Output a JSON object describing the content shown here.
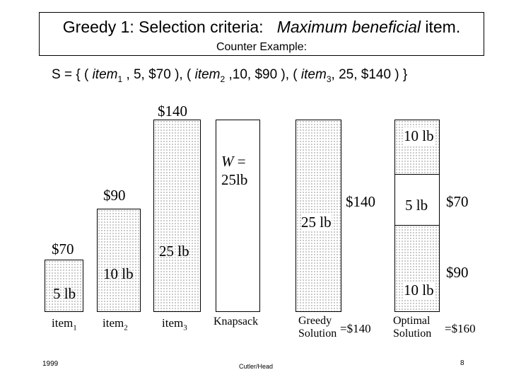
{
  "header": {
    "title_prefix": "Greedy 1: Selection criteria:",
    "title_italic": "Maximum beneficial",
    "title_suffix": "item.",
    "subtitle": "Counter Example:"
  },
  "set": {
    "open": "S = { (",
    "item1": "item",
    "sub1": "1",
    "rest1": ", 5, $70 ), (",
    "item2": "item",
    "sub2": "2",
    "rest2": ",10, $90 ), (",
    "item3": "item",
    "sub3": "3",
    "rest3": ", 25, $140 ) }"
  },
  "items": [
    {
      "value": "$70",
      "weight": "5 lb",
      "label": "item",
      "sub": "1"
    },
    {
      "value": "$90",
      "weight": "10 lb",
      "label": "item",
      "sub": "2"
    },
    {
      "value": "$140",
      "weight": "25 lb",
      "label": "item",
      "sub": "3"
    }
  ],
  "knapsack": {
    "label": "Knapsack",
    "w_symbol": "W",
    "w_eq": " =",
    "w_value": "25lb"
  },
  "greedy": {
    "weight": "25 lb",
    "value": "$140",
    "line1": "Greedy",
    "line2": "Solution",
    "total": "=$140"
  },
  "optimal": {
    "top_weight": "10 lb",
    "mid_weight": "5 lb",
    "mid_value": "$70",
    "bottom_weight": "10 lb",
    "bottom_value": "$90",
    "line1": "Optimal",
    "line2": "Solution",
    "total": "=$160"
  },
  "footer": {
    "year": "1999",
    "author": "Cutler/Head",
    "page": "8"
  }
}
